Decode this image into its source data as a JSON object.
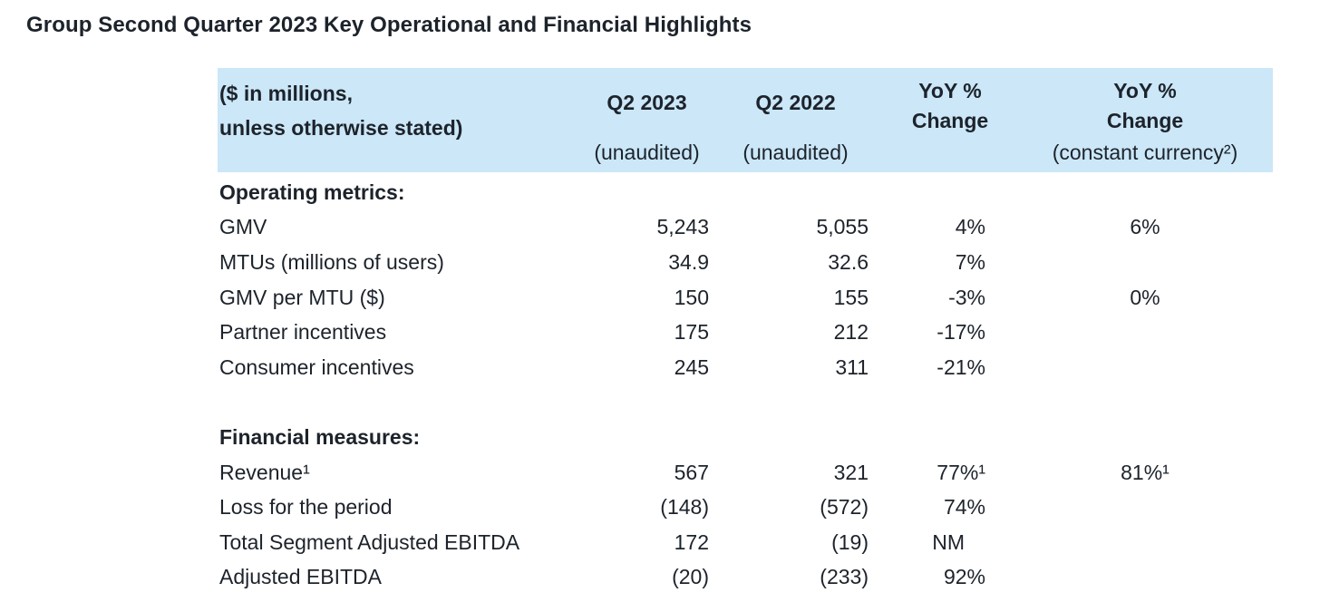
{
  "page": {
    "title": "Group Second Quarter 2023 Key Operational and Financial Highlights"
  },
  "colors": {
    "header_bg": "#cbe7f8",
    "text": "#1d232b",
    "page_bg": "#ffffff"
  },
  "table": {
    "header": {
      "col1_line1": "($ in millions,",
      "col1_line2": "unless otherwise stated)",
      "col2_title": "Q2 2023",
      "col2_sub": "(unaudited)",
      "col3_title": "Q2 2022",
      "col3_sub": "(unaudited)",
      "col4_line1": "YoY %",
      "col4_line2": "Change",
      "col5_line1": "YoY %",
      "col5_line2": "Change",
      "col5_sub": "(constant currency²)"
    },
    "rows": [
      {
        "label": "Operating metrics:"
      },
      {
        "label": "GMV",
        "v1": "5,243",
        "v2": "5,055",
        "v3": "4%",
        "v4": "6%"
      },
      {
        "label": "MTUs (millions of users)",
        "v1": "34.9",
        "v2": "32.6",
        "v3": "7%",
        "v4": ""
      },
      {
        "label": "GMV per MTU ($)",
        "v1": "150",
        "v2": "155",
        "v3": "-3%",
        "v4": "0%"
      },
      {
        "label": "Partner incentives",
        "v1": "175",
        "v2": "212",
        "v3": "-17%",
        "v4": ""
      },
      {
        "label": "Consumer incentives",
        "v1": "245",
        "v2": "311",
        "v3": "-21%",
        "v4": ""
      },
      {
        "label": "Financial measures:"
      },
      {
        "label": "Revenue¹",
        "v1": "567",
        "v2": "321",
        "v3": "77%¹",
        "v4": "81%¹"
      },
      {
        "label": "Loss for the period",
        "v1": "(148)",
        "v2": "(572)",
        "v3": "74%",
        "v4": ""
      },
      {
        "label": "Total Segment Adjusted EBITDA",
        "v1": "172",
        "v2": "(19)",
        "v3": "NM",
        "v4": ""
      },
      {
        "label": "Adjusted EBITDA",
        "v1": "(20)",
        "v2": "(233)",
        "v3": "92%",
        "v4": ""
      }
    ]
  }
}
